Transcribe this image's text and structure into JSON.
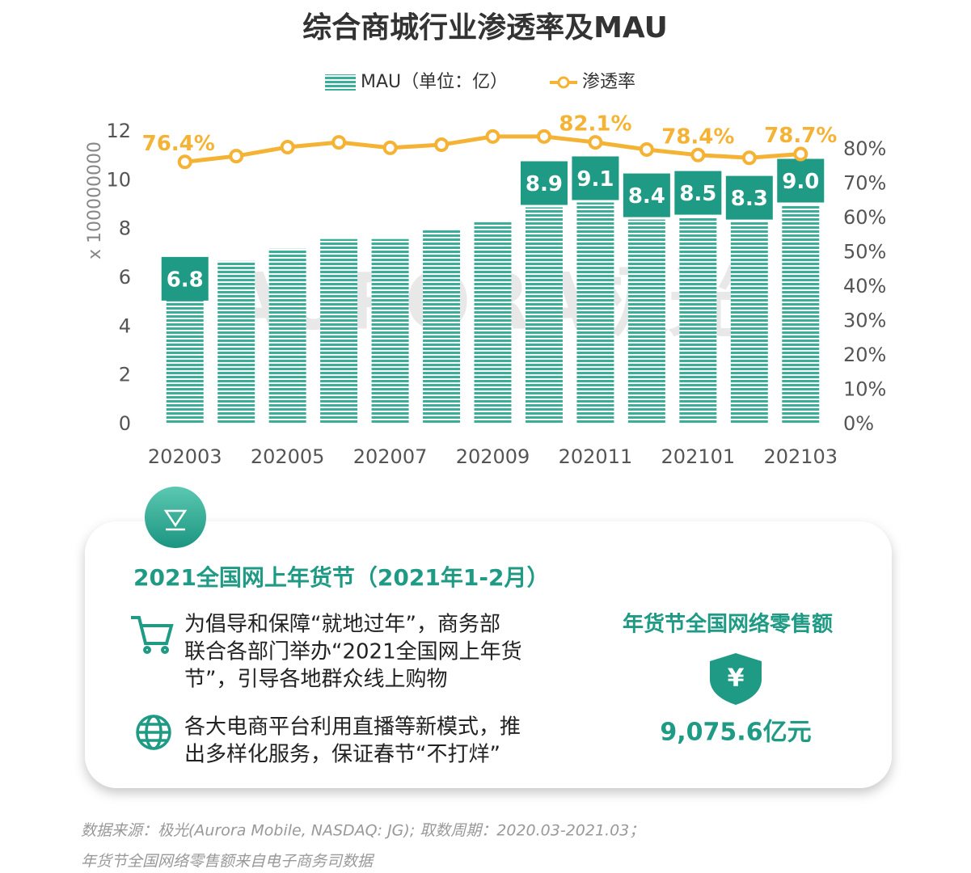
{
  "chart_data": {
    "type": "bar_line",
    "title": "综合商城行业渗透率及MAU",
    "y_label": "x 100000000",
    "watermark": "AURORA极光",
    "categories": [
      "202003",
      null,
      "202005",
      null,
      "202007",
      null,
      "202009",
      null,
      "202011",
      null,
      "202101",
      null,
      "202103"
    ],
    "series": [
      {
        "name": "MAU（单位：亿）",
        "type": "bar",
        "color": "#3aae99",
        "label_color": "#1f9a84",
        "values": [
          6.8,
          6.7,
          7.2,
          7.6,
          7.6,
          8.0,
          8.3,
          8.9,
          9.1,
          8.4,
          8.5,
          8.3,
          9.0
        ],
        "value_labels": [
          "6.8",
          null,
          null,
          null,
          null,
          null,
          null,
          "8.9",
          "9.1",
          "8.4",
          "8.5",
          "8.3",
          "9.0"
        ]
      },
      {
        "name": "渗透率",
        "type": "line",
        "axis": "y2",
        "color": "#f5b335",
        "values": [
          76.4,
          78.1,
          80.7,
          82.1,
          80.5,
          81.4,
          83.8,
          83.8,
          82.1,
          80.0,
          78.4,
          77.6,
          78.7
        ],
        "value_labels": [
          "76.4%",
          null,
          null,
          null,
          null,
          null,
          null,
          null,
          "82.1%",
          null,
          "78.4%",
          null,
          "78.7%"
        ]
      }
    ],
    "ylim": [
      0,
      12
    ],
    "yticks": [
      0,
      2,
      4,
      6,
      8,
      10,
      12
    ],
    "y2lim": [
      0,
      85
    ],
    "y2ticks": [
      {
        "value": 0,
        "label": "0%"
      },
      {
        "value": 10,
        "label": "10%"
      },
      {
        "value": 20,
        "label": "20%"
      },
      {
        "value": 30,
        "label": "30%"
      },
      {
        "value": 40,
        "label": "40%"
      },
      {
        "value": 50,
        "label": "50%"
      },
      {
        "value": 60,
        "label": "60%"
      },
      {
        "value": 70,
        "label": "70%"
      },
      {
        "value": 80,
        "label": "80%"
      }
    ],
    "grid": false
  },
  "panel": {
    "title": "2021全国网上年货节（2021年1-2月）",
    "bullets": [
      {
        "lines": [
          "为倡导和保障“就地过年”，商务部",
          "联合各部门举办“2021全国网上年货",
          "节”，引导各地群众线上购物"
        ]
      },
      {
        "lines": [
          "各大电商平台利用直播等新模式，推",
          "出多样化服务，保证春节“不打烊”"
        ]
      }
    ],
    "stat_title": "年货节全国网络零售额",
    "stat_icon": "¥",
    "stat_value": "9,075.6亿元"
  },
  "footer": [
    "数据来源：极光(Aurora Mobile, NASDAQ: JG); 取数周期：2020.03-2021.03；",
    "年货节全国网络零售额来自电子商务司数据"
  ]
}
